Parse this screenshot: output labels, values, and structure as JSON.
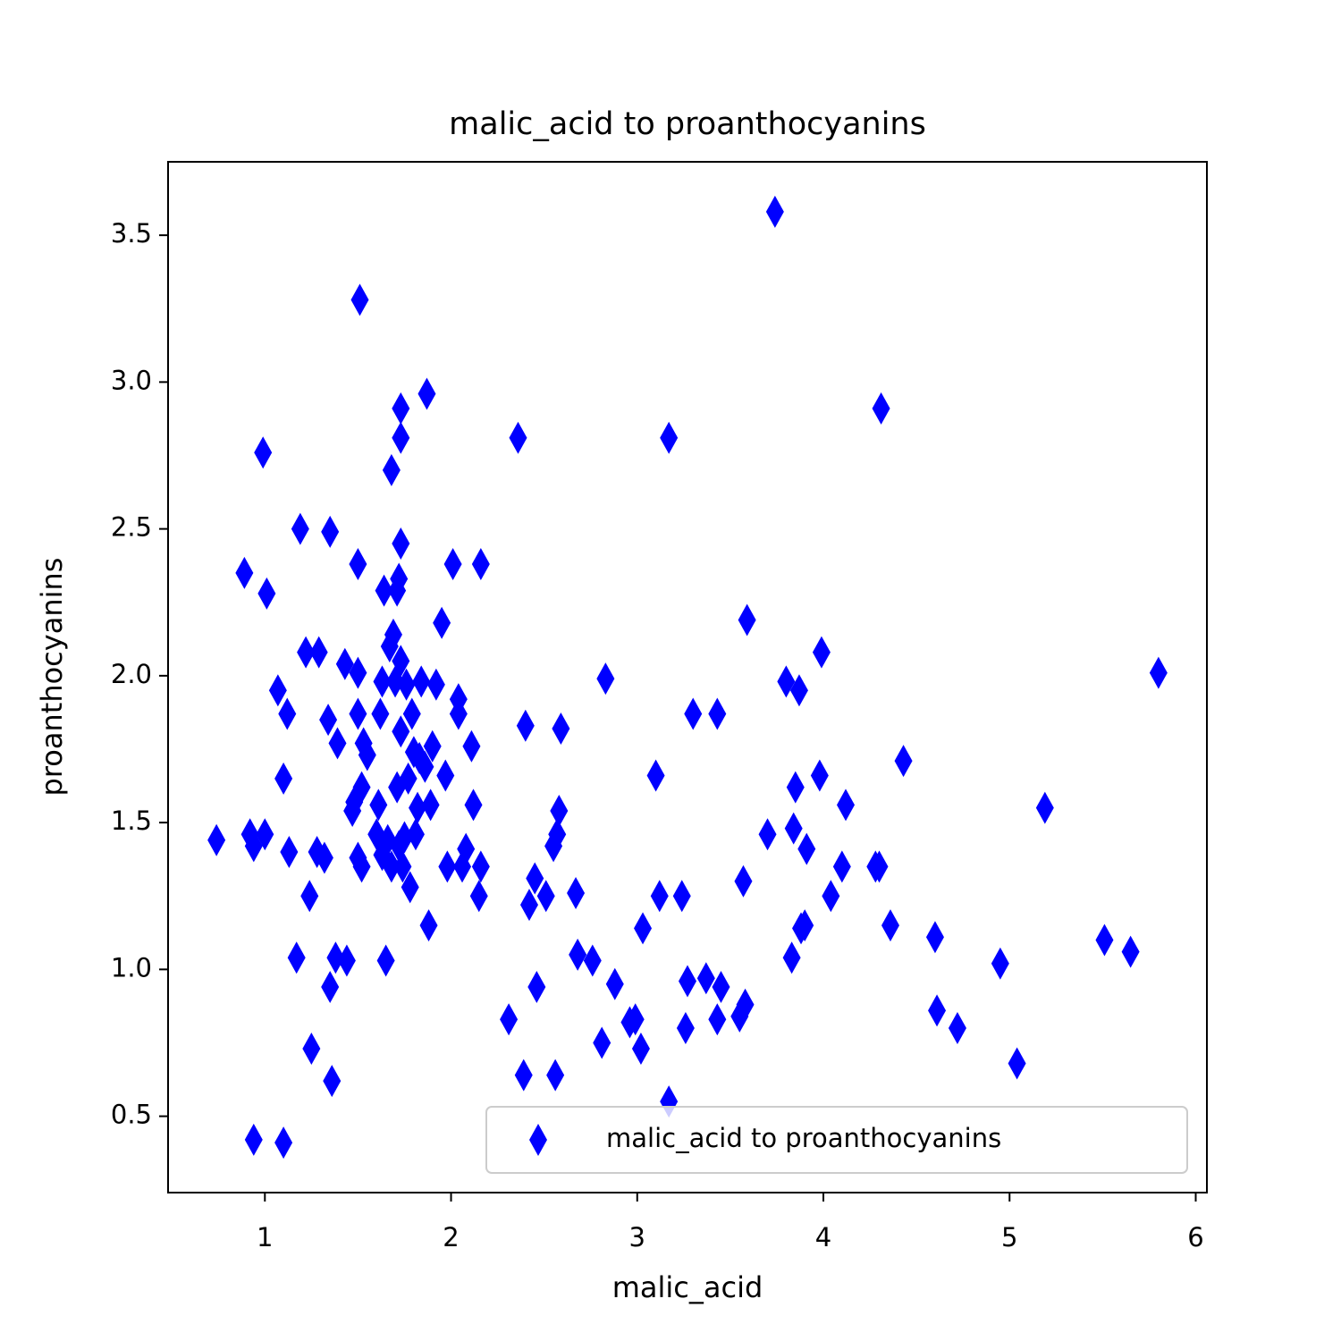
{
  "chart_data": {
    "type": "scatter",
    "title": "malic_acid to proanthocyanins",
    "x_label": "malic_acid",
    "y_label": "proanthocyanins",
    "x": [
      0.74,
      0.89,
      0.92,
      0.94,
      0.99,
      1.0,
      1.01,
      0.94,
      1.1,
      1.07,
      1.1,
      1.12,
      1.13,
      1.17,
      1.19,
      1.22,
      1.24,
      1.25,
      1.28,
      1.29,
      1.32,
      1.35,
      1.34,
      1.35,
      1.36,
      1.38,
      1.39,
      1.43,
      1.44,
      1.47,
      1.48,
      1.5,
      1.51,
      1.5,
      1.5,
      1.5,
      1.52,
      1.52,
      1.53,
      1.55,
      1.6,
      1.61,
      1.62,
      1.63,
      1.64,
      1.63,
      1.65,
      1.66,
      1.67,
      1.68,
      1.68,
      1.69,
      1.7,
      1.71,
      1.71,
      1.72,
      1.72,
      1.73,
      1.73,
      1.73,
      1.73,
      1.73,
      1.74,
      1.75,
      1.76,
      1.77,
      1.78,
      1.79,
      1.8,
      1.81,
      1.82,
      1.83,
      1.84,
      1.86,
      1.87,
      1.88,
      1.89,
      1.9,
      1.92,
      1.95,
      1.97,
      1.98,
      2.01,
      2.04,
      2.04,
      2.06,
      2.08,
      2.11,
      2.12,
      2.15,
      2.16,
      2.16,
      2.31,
      2.36,
      2.39,
      2.4,
      2.42,
      2.45,
      2.46,
      2.51,
      2.55,
      2.56,
      2.57,
      2.58,
      2.59,
      2.67,
      2.68,
      2.76,
      2.81,
      2.83,
      2.88,
      2.96,
      2.99,
      3.02,
      3.03,
      3.1,
      3.12,
      3.17,
      3.17,
      3.24,
      3.26,
      3.27,
      3.3,
      3.37,
      3.43,
      3.43,
      3.45,
      3.55,
      3.58,
      3.57,
      3.59,
      3.74,
      3.7,
      3.8,
      3.83,
      3.84,
      3.85,
      3.87,
      3.88,
      3.9,
      3.91,
      3.98,
      3.99,
      4.04,
      4.1,
      4.12,
      4.28,
      4.3,
      4.31,
      4.36,
      4.43,
      4.6,
      4.61,
      4.72,
      4.95,
      5.04,
      5.19,
      5.51,
      5.65,
      5.8
    ],
    "series": [
      {
        "name": "malic_acid to proanthocyanins",
        "color": "#0000ff",
        "values": [
          1.44,
          2.35,
          1.46,
          1.42,
          2.76,
          1.46,
          2.28,
          0.42,
          0.41,
          1.95,
          1.65,
          1.87,
          1.4,
          1.04,
          2.5,
          2.08,
          1.25,
          0.73,
          1.4,
          2.08,
          1.38,
          2.49,
          1.85,
          0.94,
          0.62,
          1.04,
          1.77,
          2.04,
          1.03,
          1.54,
          1.57,
          2.38,
          3.28,
          2.01,
          1.87,
          1.38,
          1.35,
          1.62,
          1.77,
          1.73,
          1.46,
          1.56,
          1.87,
          1.98,
          2.29,
          1.39,
          1.03,
          1.44,
          2.1,
          2.7,
          1.35,
          2.14,
          1.98,
          2.29,
          1.62,
          2.33,
          1.42,
          2.81,
          2.91,
          2.45,
          1.81,
          2.05,
          1.35,
          1.45,
          1.97,
          1.65,
          1.28,
          1.87,
          1.74,
          1.46,
          1.55,
          1.72,
          1.98,
          1.69,
          2.96,
          1.15,
          1.56,
          1.76,
          1.97,
          2.18,
          1.66,
          1.35,
          2.38,
          1.92,
          1.87,
          1.35,
          1.41,
          1.76,
          1.56,
          1.25,
          2.38,
          1.35,
          0.83,
          2.81,
          0.64,
          1.83,
          1.22,
          1.31,
          0.94,
          1.25,
          1.42,
          0.64,
          1.46,
          1.54,
          1.82,
          1.26,
          1.05,
          1.03,
          0.75,
          1.99,
          0.95,
          0.82,
          0.83,
          0.73,
          1.14,
          1.66,
          1.25,
          2.81,
          0.55,
          1.25,
          0.8,
          0.96,
          1.87,
          0.97,
          1.87,
          0.83,
          0.94,
          0.84,
          0.88,
          1.3,
          2.19,
          3.58,
          1.46,
          1.98,
          1.04,
          1.48,
          1.62,
          1.95,
          1.14,
          1.15,
          1.41,
          1.66,
          2.08,
          1.25,
          1.35,
          1.56,
          1.35,
          1.35,
          2.91,
          1.15,
          1.71,
          1.11,
          0.86,
          0.8,
          1.02,
          0.68,
          1.55,
          1.1,
          1.06,
          2.01
        ]
      }
    ],
    "xlim": [
      0.48,
      6.06
    ],
    "ylim": [
      0.24,
      3.75
    ],
    "xticks": [
      1,
      2,
      3,
      4,
      5,
      6
    ],
    "yticks": [
      0.5,
      {
        "value": 1,
        "label": "1.0"
      },
      1.5,
      {
        "value": 2,
        "label": "2.0"
      },
      2.5,
      {
        "value": 3,
        "label": "3.0"
      },
      3.5
    ],
    "grid": false,
    "legend": "lower right"
  }
}
